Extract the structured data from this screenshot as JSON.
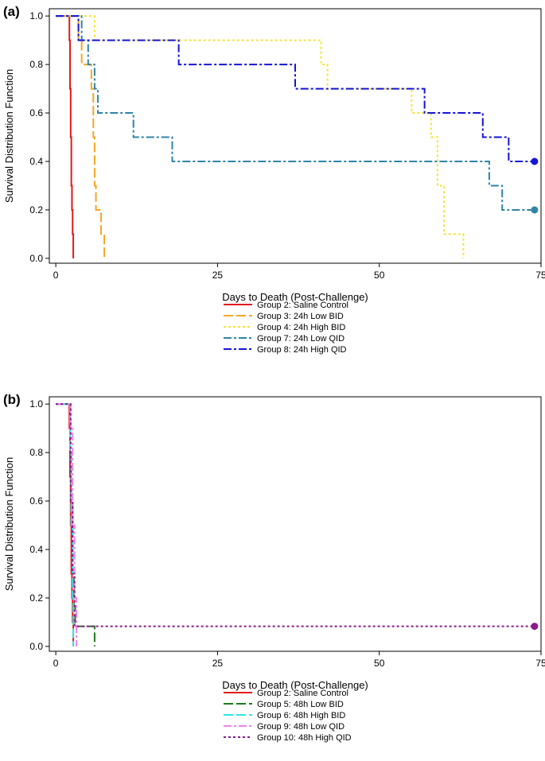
{
  "chart_data": [
    {
      "panel_label": "(a)",
      "type": "line",
      "step": true,
      "xlabel": "Days to Death (Post-Challenge)",
      "ylabel": "Survival Distribution Function",
      "xlim": [
        -1,
        75
      ],
      "ylim": [
        -0.02,
        1.03
      ],
      "xticks": [
        0,
        25,
        50,
        75
      ],
      "yticks": [
        0.0,
        0.2,
        0.4,
        0.6,
        0.8,
        1.0
      ],
      "series": [
        {
          "name": "Group 2: Saline Control",
          "color": "#e31a1c",
          "dash": "solid",
          "x": [
            0,
            2.1,
            2.2,
            2.3,
            2.4,
            2.5,
            2.6,
            2.7
          ],
          "y": [
            1.0,
            0.9,
            0.7,
            0.5,
            0.3,
            0.2,
            0.1,
            0.0
          ],
          "censored_end": false
        },
        {
          "name": "Group 3: 24h Low BID",
          "color": "#f5a623",
          "dash": "longdash",
          "x": [
            0,
            3.5,
            4.0,
            5.5,
            5.8,
            6.0,
            6.2,
            7.0,
            7.5
          ],
          "y": [
            1.0,
            0.9,
            0.8,
            0.7,
            0.5,
            0.3,
            0.2,
            0.1,
            0.0
          ],
          "censored_end": false
        },
        {
          "name": "Group 4: 24h High BID",
          "color": "#f5e533",
          "dash": "dotted",
          "x": [
            0,
            6.0,
            41,
            42,
            55,
            58,
            59,
            60,
            63
          ],
          "y": [
            1.0,
            0.9,
            0.8,
            0.7,
            0.6,
            0.5,
            0.3,
            0.1,
            0.0
          ],
          "censored_end": false
        },
        {
          "name": "Group 7: 24h Low QID",
          "color": "#2f84a8",
          "dash": "dashdot",
          "x": [
            0,
            4.0,
            5.0,
            6.0,
            6.5,
            12,
            18,
            67,
            69,
            74
          ],
          "y": [
            1.0,
            0.9,
            0.8,
            0.7,
            0.6,
            0.5,
            0.4,
            0.3,
            0.2,
            0.2
          ],
          "censored_end": true
        },
        {
          "name": "Group 8: 24h High QID",
          "color": "#1515d6",
          "dash": "dashdot",
          "x": [
            0,
            3.5,
            19,
            37,
            57,
            66,
            70,
            74
          ],
          "y": [
            1.0,
            0.9,
            0.8,
            0.7,
            0.6,
            0.5,
            0.4,
            0.4
          ],
          "censored_end": true
        }
      ]
    },
    {
      "panel_label": "(b)",
      "type": "line",
      "step": true,
      "xlabel": "Days to Death (Post-Challenge)",
      "ylabel": "Survival Distribution Function",
      "xlim": [
        -1,
        75
      ],
      "ylim": [
        -0.02,
        1.03
      ],
      "xticks": [
        0,
        25,
        50,
        75
      ],
      "yticks": [
        0.0,
        0.2,
        0.4,
        0.6,
        0.8,
        1.0
      ],
      "series": [
        {
          "name": "Group 2: Saline Control",
          "color": "#e31a1c",
          "dash": "solid",
          "x": [
            0,
            2.1,
            2.2,
            2.3,
            2.4,
            2.5,
            2.6,
            2.7
          ],
          "y": [
            1.0,
            0.9,
            0.7,
            0.5,
            0.3,
            0.2,
            0.1,
            0.0
          ],
          "censored_end": false
        },
        {
          "name": "Group 5: 48h Low BID",
          "color": "#1f7a1f",
          "dash": "longdash",
          "x": [
            0,
            2.2,
            2.4,
            2.6,
            2.8,
            3.0,
            6.0
          ],
          "y": [
            1.0,
            0.8,
            0.6,
            0.3,
            0.167,
            0.083,
            0.0
          ],
          "censored_end": false
        },
        {
          "name": "Group 6: 48h High BID",
          "color": "#2ee6e6",
          "dash": "longdash",
          "x": [
            0,
            2.2,
            2.4,
            2.6,
            2.7
          ],
          "y": [
            1.0,
            0.8,
            0.5,
            0.2,
            0.0
          ],
          "censored_end": false
        },
        {
          "name": "Group 9: 48h Low QID",
          "color": "#ee82ee",
          "dash": "dashdot",
          "x": [
            0,
            2.3,
            2.6,
            2.9,
            3.2
          ],
          "y": [
            1.0,
            0.9,
            0.5,
            0.2,
            0.0
          ],
          "censored_end": false
        },
        {
          "name": "Group 10: 48h High QID",
          "color": "#8b1a8b",
          "dash": "dotted",
          "x": [
            0,
            2.3,
            2.6,
            2.9,
            74
          ],
          "y": [
            1.0,
            0.6,
            0.3,
            0.083,
            0.083
          ],
          "censored_end": true
        }
      ]
    }
  ]
}
